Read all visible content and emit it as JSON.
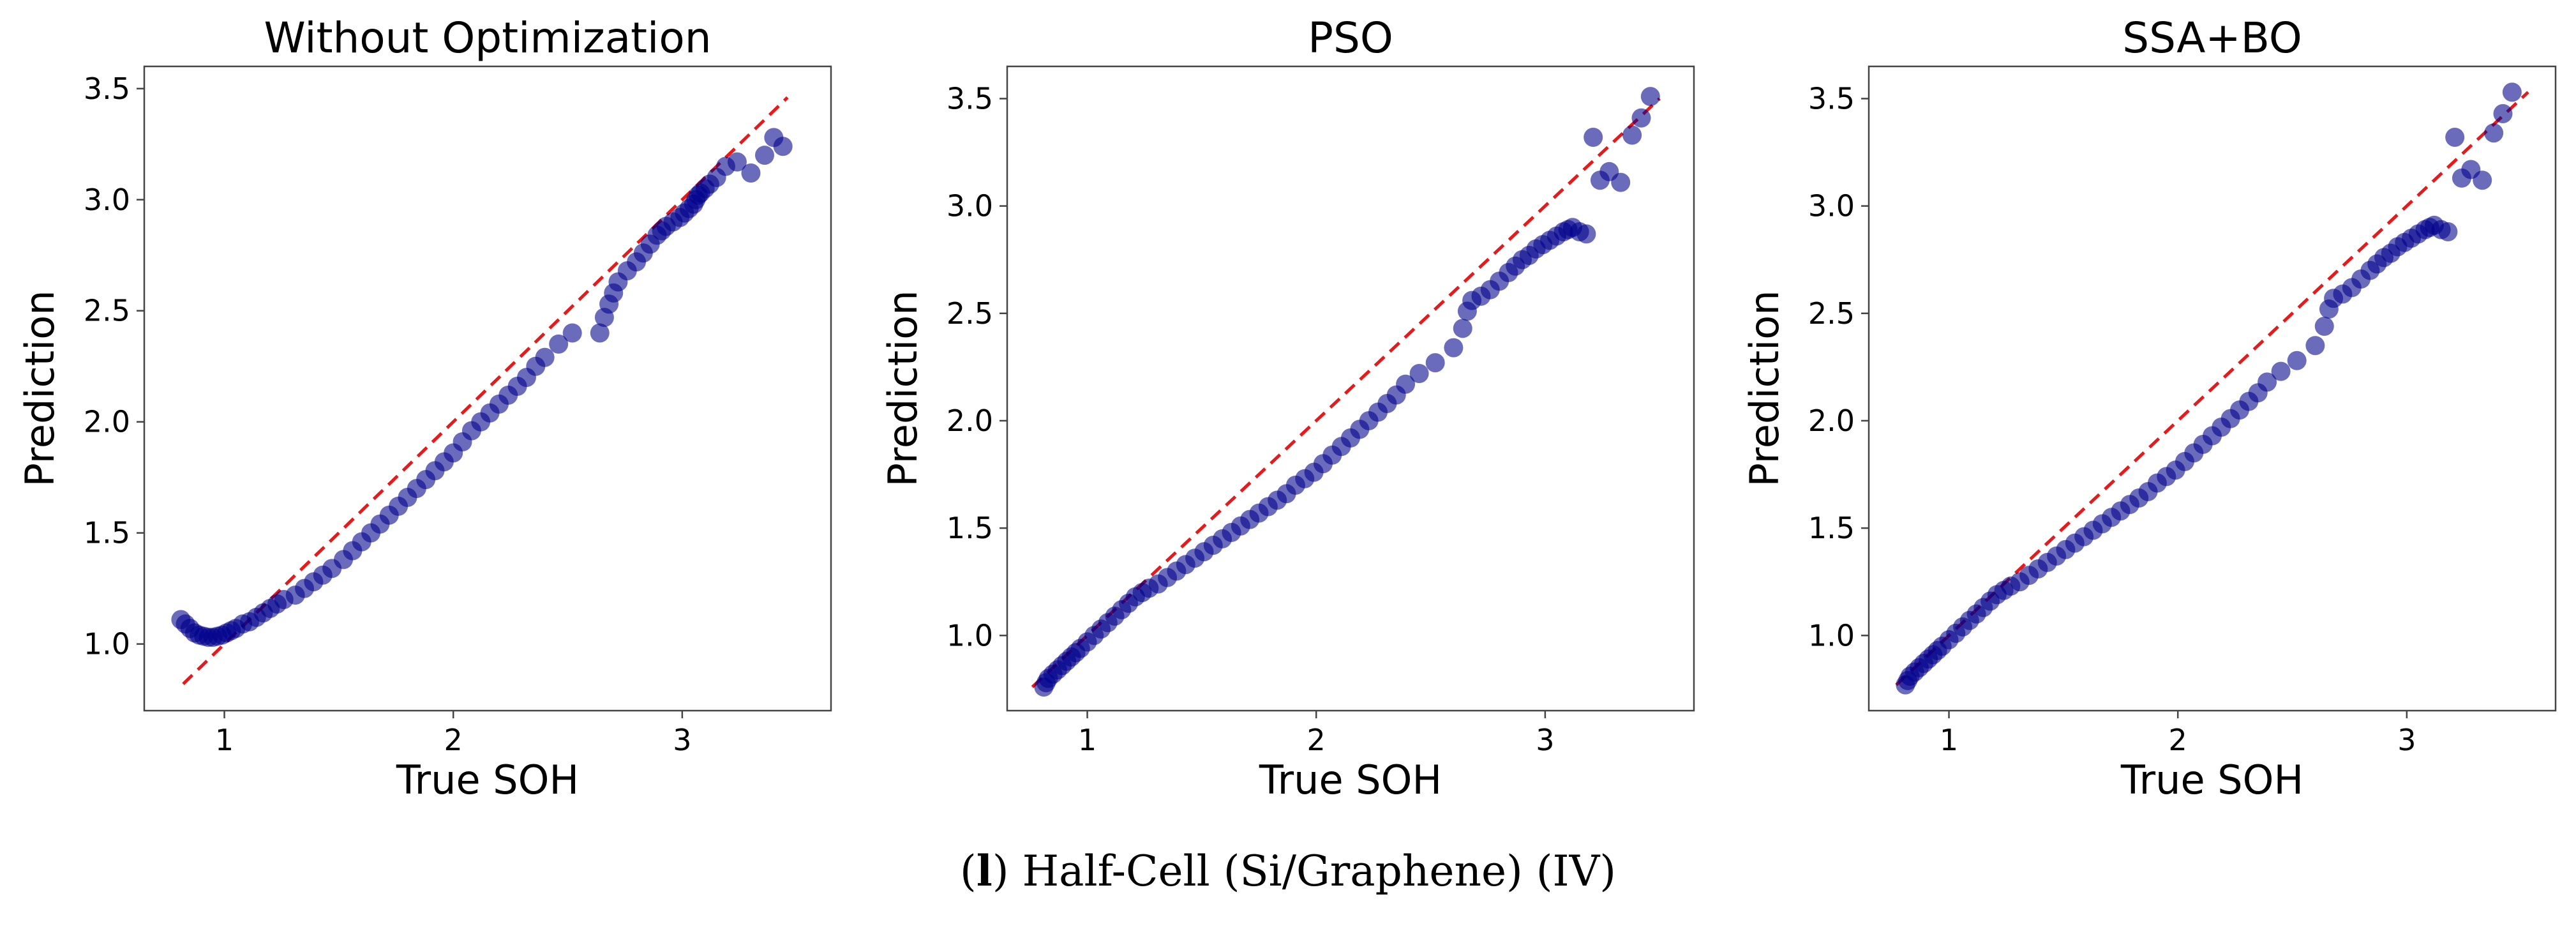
{
  "caption": {
    "letter": "l",
    "open": "(",
    "close": ")",
    "text": "Half-Cell (Si/Graphene) (IV)"
  },
  "colors": {
    "points": "#00008b",
    "reference": "#e41a1c",
    "axes": "#444444"
  },
  "chart_data": [
    {
      "type": "scatter",
      "title": "Without Optimization",
      "xlabel": "True SOH",
      "ylabel": "Prediction",
      "xlim": [
        0.65,
        3.65
      ],
      "ylim": [
        0.7,
        3.6
      ],
      "xticks": [
        1,
        2,
        3
      ],
      "yticks": [
        1.0,
        1.5,
        2.0,
        2.5,
        3.0,
        3.5
      ],
      "reference_line": {
        "x": [
          0.82,
          3.46
        ],
        "y": [
          0.82,
          3.46
        ],
        "style": "dashed"
      },
      "x": [
        0.81,
        0.83,
        0.85,
        0.87,
        0.89,
        0.91,
        0.93,
        0.95,
        0.97,
        0.99,
        1.01,
        1.03,
        1.05,
        1.08,
        1.11,
        1.14,
        1.17,
        1.2,
        1.23,
        1.26,
        1.31,
        1.35,
        1.39,
        1.43,
        1.47,
        1.52,
        1.56,
        1.6,
        1.64,
        1.68,
        1.72,
        1.76,
        1.8,
        1.84,
        1.88,
        1.92,
        1.96,
        2.0,
        2.04,
        2.08,
        2.12,
        2.16,
        2.2,
        2.24,
        2.28,
        2.32,
        2.36,
        2.4,
        2.46,
        2.52,
        2.64,
        2.66,
        2.68,
        2.7,
        2.72,
        2.76,
        2.8,
        2.83,
        2.86,
        2.89,
        2.91,
        2.93,
        2.96,
        2.99,
        3.01,
        3.03,
        3.05,
        3.06,
        3.07,
        3.08,
        3.1,
        3.12,
        3.15,
        3.19,
        3.24,
        3.3,
        3.36,
        3.4,
        3.44
      ],
      "y": [
        1.11,
        1.09,
        1.07,
        1.05,
        1.04,
        1.035,
        1.03,
        1.03,
        1.035,
        1.04,
        1.05,
        1.06,
        1.07,
        1.09,
        1.1,
        1.12,
        1.14,
        1.16,
        1.18,
        1.2,
        1.22,
        1.25,
        1.28,
        1.31,
        1.34,
        1.38,
        1.42,
        1.46,
        1.5,
        1.54,
        1.58,
        1.62,
        1.66,
        1.7,
        1.74,
        1.78,
        1.82,
        1.86,
        1.91,
        1.96,
        2.0,
        2.04,
        2.08,
        2.12,
        2.16,
        2.2,
        2.25,
        2.29,
        2.35,
        2.4,
        2.4,
        2.47,
        2.53,
        2.58,
        2.63,
        2.68,
        2.72,
        2.76,
        2.8,
        2.84,
        2.86,
        2.88,
        2.9,
        2.92,
        2.94,
        2.96,
        2.98,
        3.0,
        3.02,
        3.03,
        3.05,
        3.07,
        3.1,
        3.15,
        3.17,
        3.12,
        3.2,
        3.28,
        3.24
      ]
    },
    {
      "type": "scatter",
      "title": "PSO",
      "xlabel": "True SOH",
      "ylabel": "Prediction",
      "xlim": [
        0.65,
        3.65
      ],
      "ylim": [
        0.65,
        3.65
      ],
      "xticks": [
        1,
        2,
        3
      ],
      "yticks": [
        1.0,
        1.5,
        2.0,
        2.5,
        3.0,
        3.5
      ],
      "reference_line": {
        "x": [
          0.76,
          3.5
        ],
        "y": [
          0.76,
          3.5
        ],
        "style": "dashed"
      },
      "x": [
        0.81,
        0.82,
        0.83,
        0.85,
        0.87,
        0.89,
        0.91,
        0.93,
        0.95,
        0.97,
        1.0,
        1.03,
        1.06,
        1.09,
        1.12,
        1.15,
        1.18,
        1.21,
        1.24,
        1.27,
        1.31,
        1.35,
        1.39,
        1.43,
        1.47,
        1.51,
        1.55,
        1.59,
        1.63,
        1.67,
        1.71,
        1.75,
        1.79,
        1.83,
        1.87,
        1.91,
        1.95,
        1.99,
        2.03,
        2.07,
        2.11,
        2.15,
        2.19,
        2.23,
        2.27,
        2.31,
        2.35,
        2.39,
        2.45,
        2.52,
        2.6,
        2.64,
        2.66,
        2.68,
        2.72,
        2.76,
        2.8,
        2.84,
        2.87,
        2.9,
        2.93,
        2.96,
        2.99,
        3.02,
        3.05,
        3.08,
        3.1,
        3.12,
        3.15,
        3.18,
        3.21,
        3.24,
        3.28,
        3.33,
        3.38,
        3.42,
        3.46
      ],
      "y": [
        0.76,
        0.78,
        0.8,
        0.82,
        0.84,
        0.86,
        0.88,
        0.9,
        0.92,
        0.94,
        0.97,
        1.0,
        1.03,
        1.06,
        1.09,
        1.12,
        1.15,
        1.18,
        1.2,
        1.22,
        1.24,
        1.27,
        1.3,
        1.33,
        1.36,
        1.39,
        1.42,
        1.45,
        1.48,
        1.51,
        1.54,
        1.57,
        1.6,
        1.63,
        1.66,
        1.7,
        1.73,
        1.76,
        1.8,
        1.84,
        1.88,
        1.92,
        1.96,
        2.0,
        2.04,
        2.08,
        2.12,
        2.17,
        2.22,
        2.27,
        2.34,
        2.43,
        2.51,
        2.56,
        2.58,
        2.61,
        2.65,
        2.69,
        2.72,
        2.75,
        2.77,
        2.8,
        2.82,
        2.84,
        2.86,
        2.88,
        2.89,
        2.9,
        2.88,
        2.87,
        3.32,
        3.12,
        3.16,
        3.11,
        3.33,
        3.41,
        3.51
      ]
    },
    {
      "type": "scatter",
      "title": "SSA+BO",
      "xlabel": "True SOH",
      "ylabel": "Prediction",
      "xlim": [
        0.65,
        3.65
      ],
      "ylim": [
        0.65,
        3.65
      ],
      "xticks": [
        1,
        2,
        3
      ],
      "yticks": [
        1.0,
        1.5,
        2.0,
        2.5,
        3.0,
        3.5
      ],
      "reference_line": {
        "x": [
          0.77,
          3.53
        ],
        "y": [
          0.77,
          3.53
        ],
        "style": "dashed"
      },
      "x": [
        0.81,
        0.82,
        0.83,
        0.85,
        0.87,
        0.89,
        0.91,
        0.93,
        0.95,
        0.97,
        1.0,
        1.03,
        1.06,
        1.09,
        1.12,
        1.15,
        1.18,
        1.21,
        1.24,
        1.27,
        1.31,
        1.35,
        1.39,
        1.43,
        1.47,
        1.51,
        1.55,
        1.59,
        1.63,
        1.67,
        1.71,
        1.75,
        1.79,
        1.83,
        1.87,
        1.91,
        1.95,
        1.99,
        2.03,
        2.07,
        2.11,
        2.15,
        2.19,
        2.23,
        2.27,
        2.31,
        2.35,
        2.39,
        2.45,
        2.52,
        2.6,
        2.64,
        2.66,
        2.68,
        2.72,
        2.76,
        2.8,
        2.84,
        2.87,
        2.9,
        2.93,
        2.96,
        2.99,
        3.02,
        3.05,
        3.08,
        3.1,
        3.12,
        3.15,
        3.18,
        3.21,
        3.24,
        3.28,
        3.33,
        3.38,
        3.42,
        3.46
      ],
      "y": [
        0.77,
        0.79,
        0.81,
        0.83,
        0.85,
        0.87,
        0.89,
        0.91,
        0.93,
        0.95,
        0.98,
        1.01,
        1.04,
        1.07,
        1.1,
        1.13,
        1.16,
        1.19,
        1.21,
        1.23,
        1.25,
        1.28,
        1.31,
        1.34,
        1.37,
        1.4,
        1.43,
        1.46,
        1.49,
        1.52,
        1.55,
        1.58,
        1.61,
        1.64,
        1.67,
        1.71,
        1.74,
        1.77,
        1.81,
        1.85,
        1.89,
        1.93,
        1.97,
        2.01,
        2.05,
        2.09,
        2.13,
        2.18,
        2.23,
        2.28,
        2.35,
        2.44,
        2.52,
        2.57,
        2.59,
        2.62,
        2.66,
        2.7,
        2.73,
        2.76,
        2.78,
        2.81,
        2.83,
        2.85,
        2.87,
        2.89,
        2.9,
        2.91,
        2.89,
        2.88,
        3.32,
        3.13,
        3.17,
        3.12,
        3.34,
        3.43,
        3.53
      ]
    }
  ]
}
